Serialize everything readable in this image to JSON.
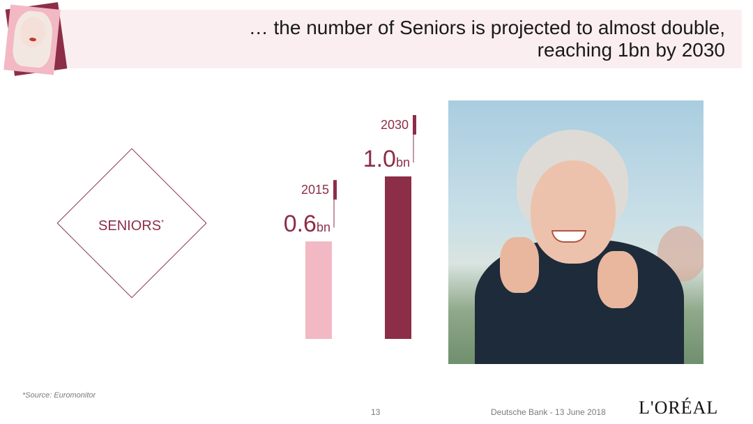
{
  "header": {
    "title_line1": "… the number of Seniors is projected to almost double,",
    "title_line2": "reaching 1bn by 2030"
  },
  "segment": {
    "label": "SENIORS",
    "footnote_mark": "*"
  },
  "chart_data": {
    "type": "bar",
    "categories": [
      "2015",
      "2030"
    ],
    "values": [
      0.6,
      1.0
    ],
    "value_labels": [
      "0.6",
      "1.0"
    ],
    "unit": "bn",
    "colors": [
      "#f2b8c4",
      "#8c2e48"
    ],
    "title": "",
    "xlabel": "",
    "ylabel": "",
    "ylim": [
      0,
      1.0
    ],
    "grid": false
  },
  "footer": {
    "source": "*Source: Euromonitor",
    "page_number": "13",
    "event": "Deutsche Bank - 13 June 2018",
    "logo_text": "L'ORÉAL"
  },
  "images": {
    "header_thumbnail": "blonde-model-portrait",
    "main_photo": "smiling-senior-woman-turtleneck"
  },
  "colors": {
    "accent": "#8c2e48",
    "accent_light": "#f2b8c4",
    "header_band": "#fbeef1"
  }
}
